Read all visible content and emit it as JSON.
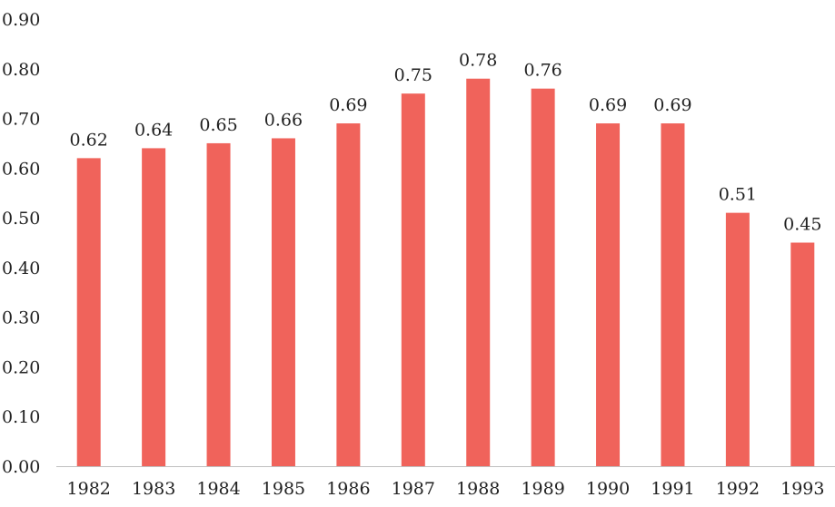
{
  "chart_data": {
    "type": "bar",
    "title": "",
    "xlabel": "",
    "ylabel": "",
    "categories": [
      "1982",
      "1983",
      "1984",
      "1985",
      "1986",
      "1987",
      "1988",
      "1989",
      "1990",
      "1991",
      "1992",
      "1993"
    ],
    "values": [
      0.62,
      0.64,
      0.65,
      0.66,
      0.69,
      0.75,
      0.78,
      0.76,
      0.69,
      0.69,
      0.51,
      0.45
    ],
    "data_labels": [
      "0.62",
      "0.64",
      "0.65",
      "0.66",
      "0.69",
      "0.75",
      "0.78",
      "0.76",
      "0.69",
      "0.69",
      "0.51",
      "0.45"
    ],
    "ylim": [
      0,
      0.9
    ],
    "yticks": [
      0,
      0.1,
      0.2,
      0.3,
      0.4,
      0.5,
      0.6,
      0.7,
      0.8,
      0.9
    ],
    "ytick_labels": [
      "0.00",
      "0.10",
      "0.20",
      "0.30",
      "0.40",
      "0.50",
      "0.60",
      "0.70",
      "0.80",
      "0.90"
    ],
    "grid": false,
    "legend": "none",
    "bar_color": "#f0635b"
  }
}
